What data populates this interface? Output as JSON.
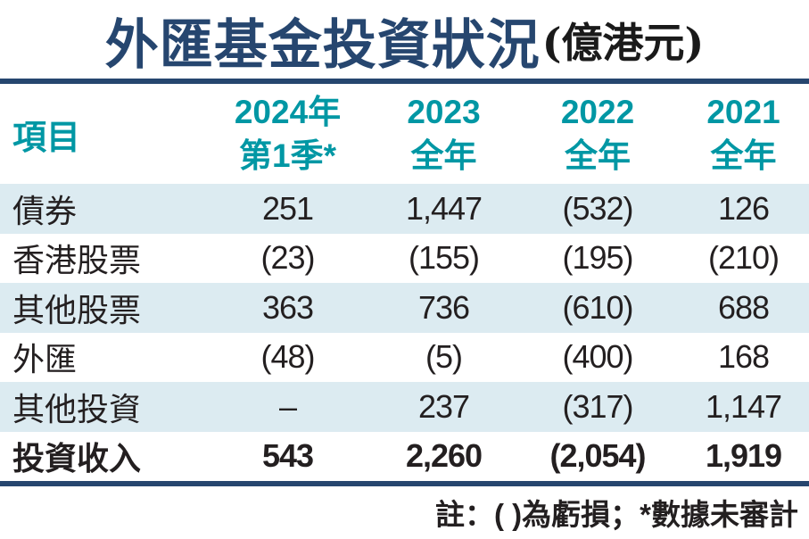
{
  "title": {
    "main": "外匯基金投資狀況",
    "unit": "(億港元)"
  },
  "table": {
    "header": {
      "item_label": "項目",
      "columns": [
        {
          "line1": "2024年",
          "line2": "第1季*"
        },
        {
          "line1": "2023",
          "line2": "全年"
        },
        {
          "line1": "2022",
          "line2": "全年"
        },
        {
          "line1": "2021",
          "line2": "全年"
        }
      ]
    },
    "rows": [
      {
        "label": "債券",
        "values": [
          "251",
          "1,447",
          "(532)",
          "126"
        ]
      },
      {
        "label": "香港股票",
        "values": [
          "(23)",
          "(155)",
          "(195)",
          "(210)"
        ]
      },
      {
        "label": "其他股票",
        "values": [
          "363",
          "736",
          "(610)",
          "688"
        ]
      },
      {
        "label": "外匯",
        "values": [
          "(48)",
          "(5)",
          "(400)",
          "168"
        ]
      },
      {
        "label": "其他投資",
        "values": [
          "–",
          "237",
          "(317)",
          "1,147"
        ]
      },
      {
        "label": "投資收入",
        "values": [
          "543",
          "2,260",
          "(2,054)",
          "1,919"
        ]
      }
    ]
  },
  "footnote": "註：( )為虧損；*數據未審計",
  "colors": {
    "navy": "#26466f",
    "accent_teal": "#0097a4",
    "row_stripe": "#dcebf1",
    "text": "#231f20"
  },
  "chart_data": {
    "type": "table",
    "title": "外匯基金投資狀況 (億港元)",
    "columns": [
      "項目",
      "2024年第1季*",
      "2023全年",
      "2022全年",
      "2021全年"
    ],
    "rows": [
      [
        "債券",
        251,
        1447,
        -532,
        126
      ],
      [
        "香港股票",
        -23,
        -155,
        -195,
        -210
      ],
      [
        "其他股票",
        363,
        736,
        -610,
        688
      ],
      [
        "外匯",
        -48,
        -5,
        -400,
        168
      ],
      [
        "其他投資",
        null,
        237,
        -317,
        1147
      ],
      [
        "投資收入",
        543,
        2260,
        -2054,
        1919
      ]
    ],
    "notes": "註：( )為虧損；*數據未審計"
  }
}
